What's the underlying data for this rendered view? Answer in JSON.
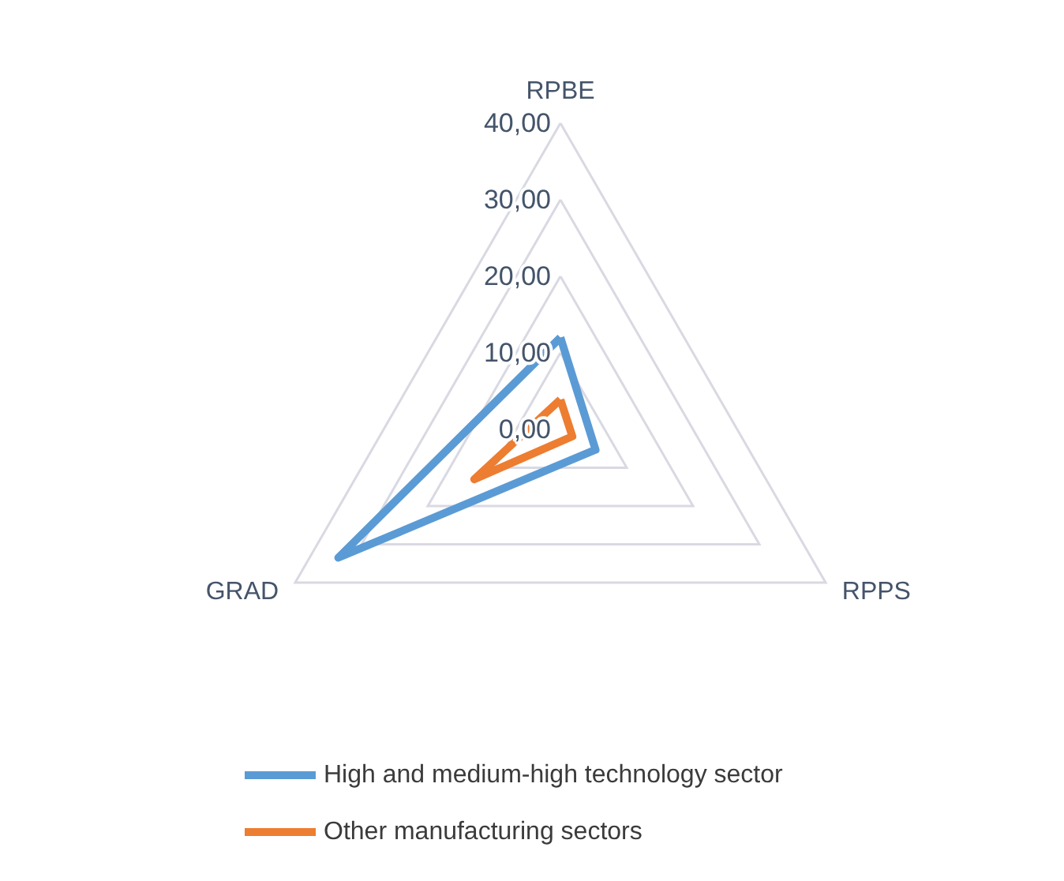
{
  "chart_data": {
    "type": "radar",
    "categories": [
      "RPBE",
      "RPPS",
      "GRAD"
    ],
    "series": [
      {
        "name": "High and medium-high technology sector",
        "color": "#5b9bd5",
        "values": [
          12.0,
          5.3,
          33.5
        ]
      },
      {
        "name": "Other manufacturing sectors",
        "color": "#ed7d31",
        "values": [
          3.9,
          1.8,
          13.0
        ]
      }
    ],
    "ylim": [
      0,
      40
    ],
    "yticks": [
      {
        "value": 0,
        "label": "0,00"
      },
      {
        "value": 10,
        "label": "10,00"
      },
      {
        "value": 20,
        "label": "20,00"
      },
      {
        "value": 30,
        "label": "30,00"
      },
      {
        "value": 40,
        "label": "40,00"
      }
    ],
    "legend": "bottom",
    "marker": "none",
    "line_style": "solid"
  }
}
